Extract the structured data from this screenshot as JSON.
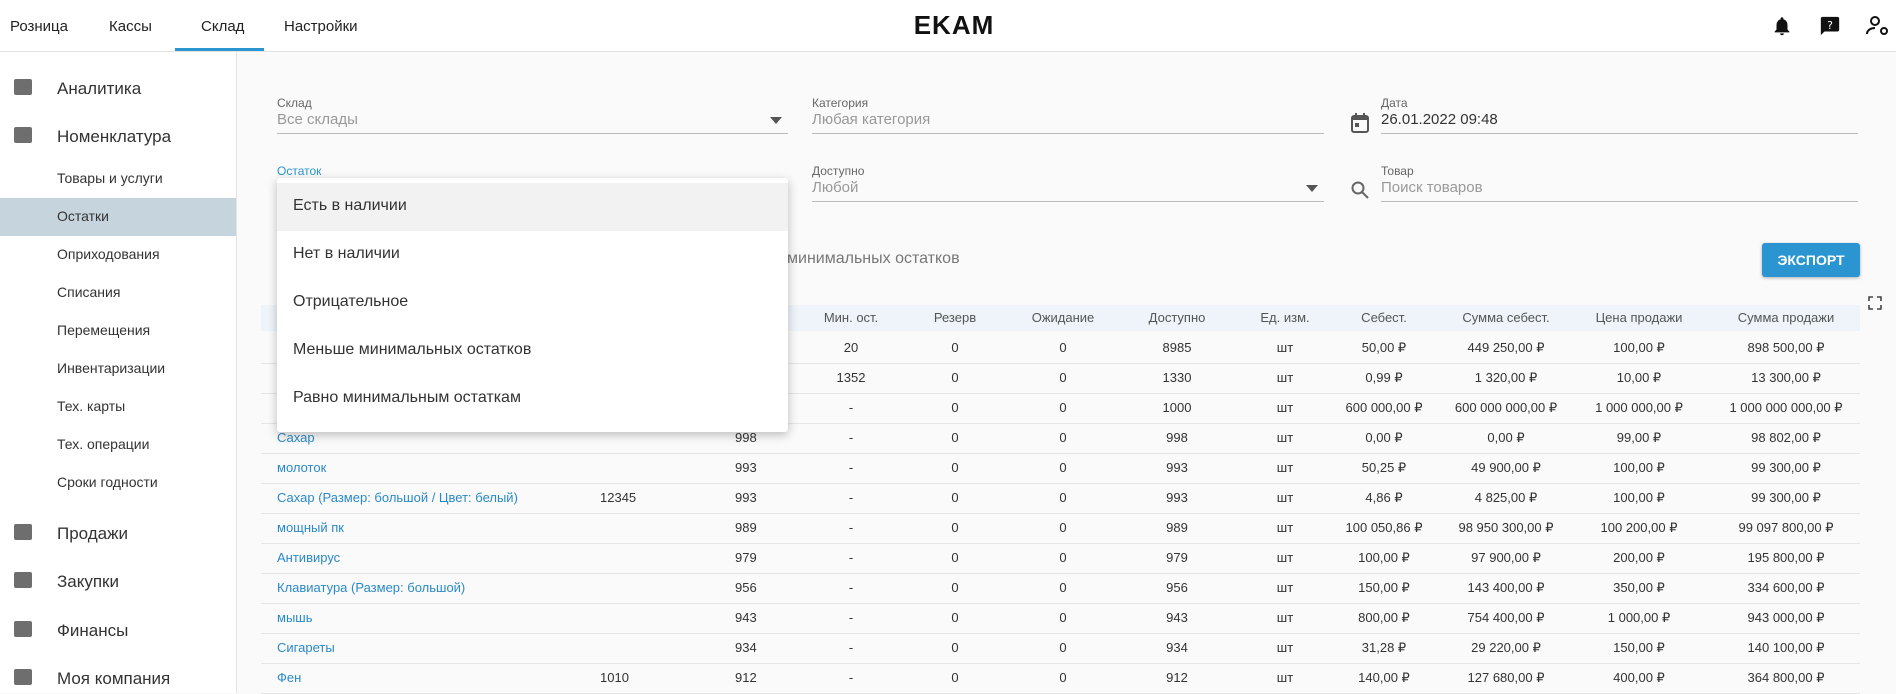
{
  "nav": {
    "tabs": [
      "Розница",
      "Кассы",
      "Склад",
      "Настройки"
    ],
    "logo": "EKAM"
  },
  "sidebar": {
    "top": [
      "Аналитика",
      "Номенклатура"
    ],
    "sub": [
      "Товары и услуги",
      "Остатки",
      "Оприходования",
      "Списания",
      "Перемещения",
      "Инвентаризации",
      "Тех. карты",
      "Тех. операции",
      "Сроки годности"
    ],
    "bottom": [
      "Продажи",
      "Закупки",
      "Финансы",
      "Моя компания"
    ]
  },
  "filters": {
    "warehouse": {
      "label": "Склад",
      "value": "Все склады"
    },
    "category": {
      "label": "Категория",
      "value": "Любая категория"
    },
    "date": {
      "label": "Дата",
      "value": "26.01.2022 09:48"
    },
    "stock": {
      "label": "Остаток"
    },
    "available": {
      "label": "Доступно",
      "value": "Любой"
    },
    "product": {
      "label": "Товар",
      "value": "Поиск товаров"
    }
  },
  "dropdown": {
    "options": [
      "Есть в наличии",
      "Нет в наличии",
      "Отрицательное",
      "Меньше минимальных остатков",
      "Равно минимальным остаткам"
    ]
  },
  "selected_filter": "минимальных остатков",
  "export_button": "ЭКСПОРТ",
  "table": {
    "headers": [
      "Мин. ост.",
      "Резерв",
      "Ожидание",
      "Доступно",
      "Ед. изм.",
      "Себест.",
      "Сумма себест.",
      "Цена продажи",
      "Сумма продажи"
    ],
    "rows": [
      {
        "cells": [
          "20",
          "0",
          "0",
          "8985",
          "шт",
          "50,00 ₽",
          "449 250,00 ₽",
          "100,00 ₽",
          "898 500,00 ₽"
        ]
      },
      {
        "cells": [
          "1352",
          "0",
          "0",
          "1330",
          "шт",
          "0,99 ₽",
          "1 320,00 ₽",
          "10,00 ₽",
          "13 300,00 ₽"
        ]
      },
      {
        "cells": [
          "-",
          "0",
          "0",
          "1000",
          "шт",
          "600 000,00 ₽",
          "600 000 000,00 ₽",
          "1 000 000,00 ₽",
          "1 000 000 000,00 ₽"
        ]
      },
      {
        "name": "Сахар",
        "stock": "998",
        "cells": [
          "-",
          "0",
          "0",
          "998",
          "шт",
          "0,00 ₽",
          "0,00 ₽",
          "99,00 ₽",
          "98 802,00 ₽"
        ]
      },
      {
        "name": "молоток",
        "stock": "993",
        "cells": [
          "-",
          "0",
          "0",
          "993",
          "шт",
          "50,25 ₽",
          "49 900,00 ₽",
          "100,00 ₽",
          "99 300,00 ₽"
        ]
      },
      {
        "name": "Сахар (Размер: большой / Цвет: белый)",
        "article": "12345",
        "stock": "993",
        "cells": [
          "-",
          "0",
          "0",
          "993",
          "шт",
          "4,86 ₽",
          "4 825,00 ₽",
          "100,00 ₽",
          "99 300,00 ₽"
        ]
      },
      {
        "name": "мощный пк",
        "stock": "989",
        "cells": [
          "-",
          "0",
          "0",
          "989",
          "шт",
          "100 050,86 ₽",
          "98 950 300,00 ₽",
          "100 200,00 ₽",
          "99 097 800,00 ₽"
        ]
      },
      {
        "name": "Антивирус",
        "stock": "979",
        "cells": [
          "-",
          "0",
          "0",
          "979",
          "шт",
          "100,00 ₽",
          "97 900,00 ₽",
          "200,00 ₽",
          "195 800,00 ₽"
        ]
      },
      {
        "name": "Клавиатура (Размер: большой)",
        "stock": "956",
        "cells": [
          "-",
          "0",
          "0",
          "956",
          "шт",
          "150,00 ₽",
          "143 400,00 ₽",
          "350,00 ₽",
          "334 600,00 ₽"
        ]
      },
      {
        "name": "мышь",
        "stock": "943",
        "cells": [
          "-",
          "0",
          "0",
          "943",
          "шт",
          "800,00 ₽",
          "754 400,00 ₽",
          "1 000,00 ₽",
          "943 000,00 ₽"
        ]
      },
      {
        "name": "Сигареты",
        "stock": "934",
        "cells": [
          "-",
          "0",
          "0",
          "934",
          "шт",
          "31,28 ₽",
          "29 220,00 ₽",
          "150,00 ₽",
          "140 100,00 ₽"
        ]
      },
      {
        "name": "Фен",
        "article": "1010",
        "stock": "912",
        "cells": [
          "-",
          "0",
          "0",
          "912",
          "шт",
          "140,00 ₽",
          "127 680,00 ₽",
          "400,00 ₽",
          "364 800,00 ₽"
        ]
      }
    ]
  }
}
